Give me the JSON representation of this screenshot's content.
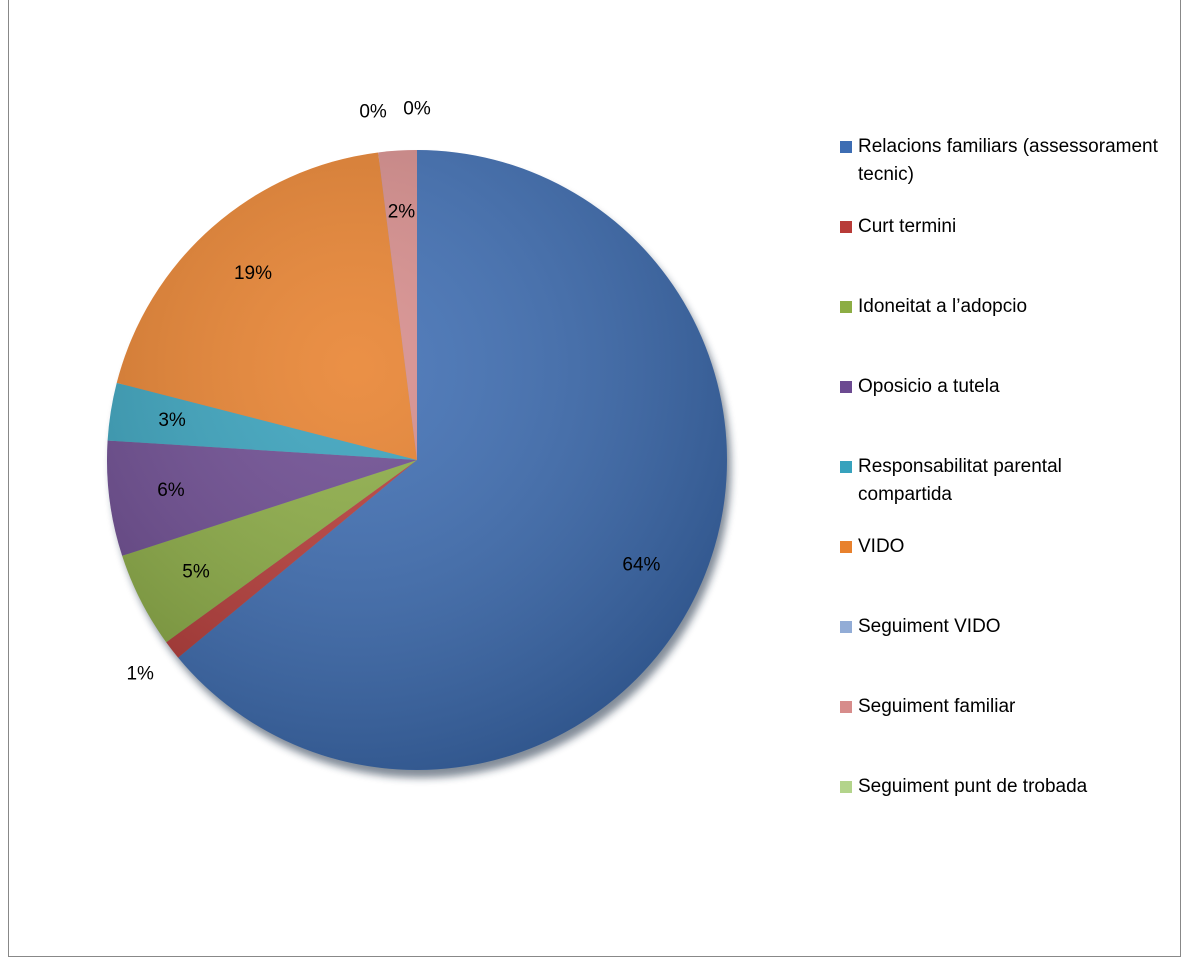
{
  "chart_data": {
    "type": "pie",
    "categories": [
      "Relacions familiars (assessorament tecnic)",
      "Curt termini",
      "Idoneitat a l’adopcio",
      "Oposicio a tutela",
      "Responsabilitat parental compartida",
      "VIDO",
      "Seguiment VIDO",
      "Seguiment familiar",
      "Seguiment punt de trobada"
    ],
    "values": [
      64,
      1,
      5,
      6,
      3,
      19,
      0,
      2,
      0
    ],
    "value_labels": [
      "64%",
      "1%",
      "5%",
      "6%",
      "3%",
      "19%",
      "0%",
      "2%",
      "0%"
    ],
    "colors": [
      "#3d6db3",
      "#b83b38",
      "#8cad44",
      "#6c4a91",
      "#37a2bd",
      "#e8812d",
      "#92acd6",
      "#d78c8b",
      "#b3d48b"
    ],
    "legend": "right"
  }
}
